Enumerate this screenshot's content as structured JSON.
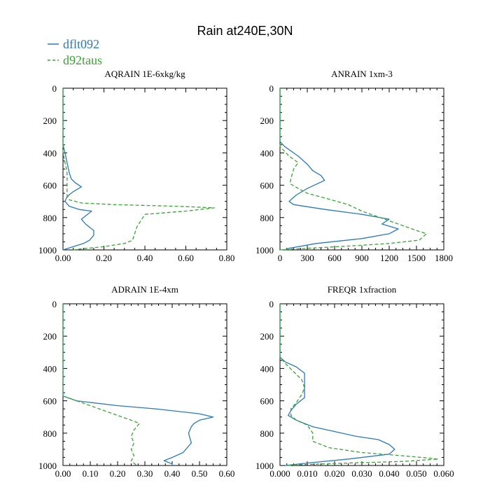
{
  "title": "Rain at240E,30N",
  "legend": [
    {
      "label": "dflt092",
      "color": "#2a79b9",
      "dash": "solid"
    },
    {
      "label": "d92taus",
      "color": "#3aa335",
      "dash": "dashed"
    }
  ],
  "chart_data": [
    {
      "type": "line",
      "title": "AQRAIN  1E-6xkg/kg",
      "xlim": [
        0,
        0.8
      ],
      "ylim": [
        1000,
        0
      ],
      "xticks": [
        "0.00",
        "0.20",
        "0.40",
        "0.60",
        "0.80"
      ],
      "xtick_values": [
        0,
        0.2,
        0.4,
        0.6,
        0.8
      ],
      "yticks": [
        "0",
        "200",
        "400",
        "600",
        "800",
        "1000"
      ],
      "ytick_values": [
        0,
        200,
        400,
        600,
        800,
        1000
      ],
      "series": [
        {
          "name": "dflt092",
          "points": [
            [
              0.0,
              0
            ],
            [
              0.0,
              350
            ],
            [
              0.01,
              400
            ],
            [
              0.02,
              460
            ],
            [
              0.03,
              520
            ],
            [
              0.04,
              560
            ],
            [
              0.06,
              585
            ],
            [
              0.09,
              610
            ],
            [
              0.05,
              640
            ],
            [
              0.02,
              670
            ],
            [
              0.01,
              700
            ],
            [
              0.03,
              730
            ],
            [
              0.08,
              750
            ],
            [
              0.14,
              760
            ],
            [
              0.11,
              790
            ],
            [
              0.09,
              810
            ],
            [
              0.11,
              840
            ],
            [
              0.15,
              880
            ],
            [
              0.15,
              910
            ],
            [
              0.13,
              940
            ],
            [
              0.1,
              960
            ],
            [
              0.05,
              980
            ],
            [
              0.0,
              1000
            ]
          ]
        },
        {
          "name": "d92taus",
          "points": [
            [
              0.0,
              0
            ],
            [
              0.0,
              400
            ],
            [
              0.01,
              460
            ],
            [
              0.02,
              520
            ],
            [
              0.02,
              580
            ],
            [
              0.02,
              630
            ],
            [
              0.02,
              660
            ],
            [
              0.03,
              690
            ],
            [
              0.09,
              710
            ],
            [
              0.25,
              720
            ],
            [
              0.55,
              730
            ],
            [
              0.74,
              740
            ],
            [
              0.6,
              760
            ],
            [
              0.4,
              780
            ],
            [
              0.39,
              800
            ],
            [
              0.38,
              820
            ],
            [
              0.36,
              860
            ],
            [
              0.35,
              900
            ],
            [
              0.34,
              940
            ],
            [
              0.3,
              960
            ],
            [
              0.2,
              980
            ],
            [
              0.08,
              995
            ],
            [
              0.05,
              1000
            ]
          ]
        }
      ]
    },
    {
      "type": "line",
      "title": "ANRAIN  1xm-3",
      "xlim": [
        0,
        1800
      ],
      "ylim": [
        1000,
        0
      ],
      "xticks": [
        "0",
        "300",
        "600",
        "900",
        "1200",
        "1500",
        "1800"
      ],
      "xtick_values": [
        0,
        300,
        600,
        900,
        1200,
        1500,
        1800
      ],
      "yticks": [
        "0",
        "200",
        "400",
        "600",
        "800",
        "1000"
      ],
      "ytick_values": [
        0,
        200,
        400,
        600,
        800,
        1000
      ],
      "series": [
        {
          "name": "dflt092",
          "points": [
            [
              0,
              0
            ],
            [
              0,
              330
            ],
            [
              50,
              360
            ],
            [
              200,
              420
            ],
            [
              300,
              470
            ],
            [
              360,
              510
            ],
            [
              450,
              540
            ],
            [
              490,
              570
            ],
            [
              300,
              620
            ],
            [
              180,
              660
            ],
            [
              100,
              700
            ],
            [
              150,
              720
            ],
            [
              500,
              750
            ],
            [
              900,
              780
            ],
            [
              1200,
              810
            ],
            [
              1120,
              840
            ],
            [
              1300,
              870
            ],
            [
              1200,
              900
            ],
            [
              900,
              930
            ],
            [
              400,
              960
            ],
            [
              100,
              990
            ],
            [
              50,
              1000
            ]
          ]
        },
        {
          "name": "d92taus",
          "points": [
            [
              0,
              0
            ],
            [
              0,
              360
            ],
            [
              100,
              420
            ],
            [
              200,
              460
            ],
            [
              150,
              500
            ],
            [
              120,
              560
            ],
            [
              110,
              590
            ],
            [
              200,
              620
            ],
            [
              300,
              650
            ],
            [
              500,
              680
            ],
            [
              750,
              720
            ],
            [
              900,
              760
            ],
            [
              1050,
              790
            ],
            [
              1200,
              820
            ],
            [
              1350,
              850
            ],
            [
              1500,
              880
            ],
            [
              1610,
              900
            ],
            [
              1530,
              940
            ],
            [
              1200,
              960
            ],
            [
              800,
              975
            ],
            [
              300,
              990
            ],
            [
              0,
              1000
            ]
          ]
        }
      ]
    },
    {
      "type": "line",
      "title": "ADRAIN  1E-4xm",
      "xlim": [
        0,
        0.6
      ],
      "ylim": [
        1000,
        0
      ],
      "xticks": [
        "0.00",
        "0.10",
        "0.20",
        "0.30",
        "0.40",
        "0.50",
        "0.60"
      ],
      "xtick_values": [
        0,
        0.1,
        0.2,
        0.3,
        0.4,
        0.5,
        0.6
      ],
      "yticks": [
        "0",
        "200",
        "400",
        "600",
        "800",
        "1000"
      ],
      "ytick_values": [
        0,
        200,
        400,
        600,
        800,
        1000
      ],
      "series": [
        {
          "name": "dflt092",
          "points": [
            [
              0.0,
              0
            ],
            [
              0.0,
              570
            ],
            [
              0.05,
              600
            ],
            [
              0.2,
              630
            ],
            [
              0.34,
              650
            ],
            [
              0.5,
              680
            ],
            [
              0.55,
              700
            ],
            [
              0.5,
              720
            ],
            [
              0.48,
              740
            ],
            [
              0.47,
              760
            ],
            [
              0.46,
              800
            ],
            [
              0.47,
              860
            ],
            [
              0.44,
              920
            ],
            [
              0.4,
              950
            ],
            [
              0.37,
              970
            ],
            [
              0.4,
              990
            ],
            [
              0.4,
              1000
            ]
          ]
        },
        {
          "name": "d92taus",
          "points": [
            [
              0.0,
              0
            ],
            [
              0.0,
              570
            ],
            [
              0.05,
              600
            ],
            [
              0.1,
              630
            ],
            [
              0.15,
              660
            ],
            [
              0.2,
              690
            ],
            [
              0.25,
              720
            ],
            [
              0.28,
              740
            ],
            [
              0.26,
              780
            ],
            [
              0.25,
              820
            ],
            [
              0.26,
              860
            ],
            [
              0.25,
              900
            ],
            [
              0.26,
              940
            ],
            [
              0.25,
              970
            ],
            [
              0.27,
              1000
            ]
          ]
        }
      ]
    },
    {
      "type": "line",
      "title": "FREQR  1xfraction",
      "xlim": [
        0,
        0.06
      ],
      "ylim": [
        1000,
        0
      ],
      "xticks": [
        "0.000",
        "0.010",
        "0.020",
        "0.030",
        "0.040",
        "0.050",
        "0.060"
      ],
      "xtick_values": [
        0,
        0.01,
        0.02,
        0.03,
        0.04,
        0.05,
        0.06
      ],
      "yticks": [
        "0",
        "200",
        "400",
        "600",
        "800",
        "1000"
      ],
      "ytick_values": [
        0,
        200,
        400,
        600,
        800,
        1000
      ],
      "series": [
        {
          "name": "dflt092",
          "points": [
            [
              0.0,
              0
            ],
            [
              0.0,
              330
            ],
            [
              0.002,
              360
            ],
            [
              0.006,
              390
            ],
            [
              0.009,
              430
            ],
            [
              0.009,
              480
            ],
            [
              0.009,
              530
            ],
            [
              0.009,
              580
            ],
            [
              0.006,
              620
            ],
            [
              0.004,
              660
            ],
            [
              0.003,
              690
            ],
            [
              0.006,
              720
            ],
            [
              0.012,
              760
            ],
            [
              0.02,
              790
            ],
            [
              0.028,
              820
            ],
            [
              0.036,
              840
            ],
            [
              0.04,
              870
            ],
            [
              0.042,
              900
            ],
            [
              0.04,
              930
            ],
            [
              0.025,
              960
            ],
            [
              0.01,
              985
            ],
            [
              0.002,
              1000
            ]
          ]
        },
        {
          "name": "d92taus",
          "points": [
            [
              0.0,
              0
            ],
            [
              0.0,
              330
            ],
            [
              0.002,
              370
            ],
            [
              0.005,
              420
            ],
            [
              0.008,
              470
            ],
            [
              0.009,
              520
            ],
            [
              0.008,
              560
            ],
            [
              0.006,
              610
            ],
            [
              0.004,
              650
            ],
            [
              0.004,
              690
            ],
            [
              0.006,
              720
            ],
            [
              0.01,
              750
            ],
            [
              0.012,
              800
            ],
            [
              0.012,
              850
            ],
            [
              0.018,
              890
            ],
            [
              0.03,
              920
            ],
            [
              0.045,
              940
            ],
            [
              0.055,
              955
            ],
            [
              0.058,
              960
            ],
            [
              0.045,
              975
            ],
            [
              0.025,
              985
            ],
            [
              0.008,
              995
            ],
            [
              0.002,
              1000
            ]
          ]
        }
      ]
    }
  ]
}
